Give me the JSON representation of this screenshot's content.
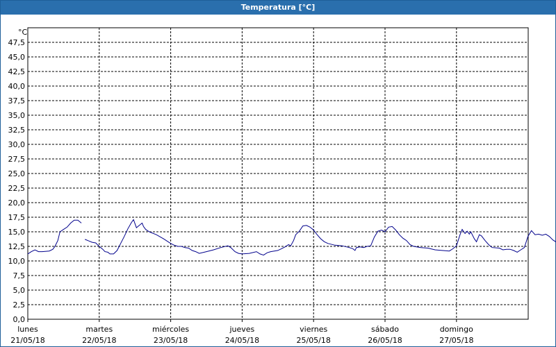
{
  "window": {
    "title": "Temperatura [°C]"
  },
  "chart_data": {
    "type": "line",
    "title": "Temperatura [°C]",
    "unit_label": "°C",
    "ylim": [
      0,
      50
    ],
    "y_ticks": [
      "0,0",
      "2,5",
      "5,0",
      "7,5",
      "10,0",
      "12,5",
      "15,0",
      "17,5",
      "20,0",
      "22,5",
      "25,0",
      "27,5",
      "30,0",
      "32,5",
      "35,0",
      "37,5",
      "40,0",
      "42,5",
      "45,0",
      "47,5"
    ],
    "y_tick_values": [
      0,
      2.5,
      5,
      7.5,
      10,
      12.5,
      15,
      17.5,
      20,
      22.5,
      25,
      27.5,
      30,
      32.5,
      35,
      37.5,
      40,
      42.5,
      45,
      47.5
    ],
    "xlim_days": [
      0,
      7.1
    ],
    "x_ticks": [
      {
        "day": "lunes",
        "date": "21/05/18"
      },
      {
        "day": "martes",
        "date": "22/05/18"
      },
      {
        "day": "miércoles",
        "date": "23/05/18"
      },
      {
        "day": "jueves",
        "date": "24/05/18"
      },
      {
        "day": "viernes",
        "date": "25/05/18"
      },
      {
        "day": "sábado",
        "date": "26/05/18"
      },
      {
        "day": "domingo",
        "date": "27/05/18"
      }
    ],
    "grid": true,
    "line_color": "#00008b",
    "series": [
      {
        "segments": [
          [
            [
              0,
              11.2
            ],
            [
              0.05,
              11.6
            ],
            [
              0.1,
              11.9
            ],
            [
              0.15,
              11.6
            ],
            [
              0.2,
              11.6
            ],
            [
              0.3,
              11.7
            ],
            [
              0.35,
              12.0
            ],
            [
              0.38,
              12.5
            ],
            [
              0.42,
              13.5
            ],
            [
              0.45,
              15.0
            ],
            [
              0.5,
              15.4
            ],
            [
              0.55,
              15.8
            ],
            [
              0.6,
              16.5
            ],
            [
              0.65,
              17.0
            ],
            [
              0.7,
              17.0
            ],
            [
              0.72,
              16.8
            ],
            [
              0.75,
              16.5
            ]
          ],
          [
            [
              0.8,
              13.7
            ],
            [
              0.9,
              13.2
            ],
            [
              0.95,
              13.1
            ],
            [
              1.0,
              12.5
            ],
            [
              1.05,
              12.0
            ],
            [
              1.08,
              11.6
            ],
            [
              1.12,
              11.5
            ],
            [
              1.15,
              11.2
            ],
            [
              1.2,
              11.2
            ],
            [
              1.25,
              11.8
            ],
            [
              1.3,
              13.0
            ],
            [
              1.35,
              14.2
            ],
            [
              1.4,
              15.5
            ],
            [
              1.45,
              16.6
            ],
            [
              1.48,
              17.1
            ],
            [
              1.52,
              15.7
            ],
            [
              1.55,
              16.0
            ],
            [
              1.6,
              16.5
            ],
            [
              1.62,
              15.9
            ],
            [
              1.65,
              15.4
            ],
            [
              1.7,
              15.0
            ],
            [
              1.8,
              14.5
            ],
            [
              1.9,
              13.8
            ],
            [
              2.0,
              13.0
            ],
            [
              2.05,
              12.7
            ],
            [
              2.1,
              12.5
            ],
            [
              2.15,
              12.5
            ],
            [
              2.2,
              12.3
            ],
            [
              2.25,
              12.2
            ],
            [
              2.3,
              11.8
            ],
            [
              2.35,
              11.6
            ],
            [
              2.4,
              11.3
            ],
            [
              2.5,
              11.6
            ],
            [
              2.6,
              11.9
            ],
            [
              2.7,
              12.3
            ],
            [
              2.8,
              12.6
            ],
            [
              2.84,
              12.3
            ],
            [
              2.9,
              11.6
            ],
            [
              2.95,
              11.3
            ],
            [
              3.0,
              11.2
            ],
            [
              3.1,
              11.3
            ],
            [
              3.2,
              11.6
            ],
            [
              3.25,
              11.2
            ],
            [
              3.3,
              11.0
            ],
            [
              3.35,
              11.4
            ],
            [
              3.4,
              11.6
            ],
            [
              3.5,
              11.8
            ],
            [
              3.55,
              12.1
            ],
            [
              3.6,
              12.4
            ],
            [
              3.65,
              12.8
            ],
            [
              3.68,
              12.6
            ],
            [
              3.72,
              13.5
            ],
            [
              3.75,
              14.5
            ],
            [
              3.8,
              15.1
            ],
            [
              3.85,
              16.0
            ],
            [
              3.9,
              16.1
            ],
            [
              3.95,
              15.8
            ],
            [
              4.0,
              15.3
            ],
            [
              4.05,
              14.5
            ],
            [
              4.1,
              13.8
            ],
            [
              4.15,
              13.3
            ],
            [
              4.2,
              13.0
            ],
            [
              4.3,
              12.7
            ],
            [
              4.4,
              12.6
            ],
            [
              4.5,
              12.3
            ],
            [
              4.55,
              12.1
            ],
            [
              4.58,
              11.8
            ],
            [
              4.6,
              12.3
            ],
            [
              4.65,
              12.4
            ],
            [
              4.7,
              12.3
            ],
            [
              4.75,
              12.5
            ],
            [
              4.8,
              12.6
            ],
            [
              4.85,
              14.1
            ],
            [
              4.9,
              15.1
            ],
            [
              4.95,
              15.3
            ],
            [
              5.0,
              15.0
            ],
            [
              5.05,
              15.8
            ],
            [
              5.1,
              15.9
            ],
            [
              5.15,
              15.3
            ],
            [
              5.2,
              14.5
            ],
            [
              5.25,
              13.9
            ],
            [
              5.3,
              13.5
            ],
            [
              5.35,
              12.8
            ],
            [
              5.4,
              12.5
            ],
            [
              5.5,
              12.3
            ],
            [
              5.6,
              12.2
            ],
            [
              5.7,
              11.9
            ],
            [
              5.8,
              11.8
            ],
            [
              5.9,
              11.7
            ],
            [
              5.95,
              12.1
            ],
            [
              6.0,
              12.6
            ],
            [
              6.05,
              14.5
            ],
            [
              6.08,
              15.4
            ],
            [
              6.12,
              14.7
            ],
            [
              6.15,
              15.1
            ],
            [
              6.18,
              14.6
            ],
            [
              6.2,
              15.0
            ],
            [
              6.25,
              13.8
            ],
            [
              6.28,
              13.3
            ],
            [
              6.32,
              14.5
            ],
            [
              6.35,
              14.3
            ],
            [
              6.4,
              13.5
            ],
            [
              6.45,
              12.8
            ],
            [
              6.5,
              12.3
            ],
            [
              6.6,
              12.2
            ],
            [
              6.65,
              11.9
            ],
            [
              6.7,
              12.0
            ],
            [
              6.75,
              12.0
            ],
            [
              6.8,
              11.8
            ],
            [
              6.85,
              11.5
            ],
            [
              6.9,
              11.9
            ],
            [
              6.95,
              12.3
            ],
            [
              7.0,
              14.2
            ],
            [
              7.05,
              15.2
            ],
            [
              7.1,
              14.5
            ],
            [
              7.15,
              14.6
            ],
            [
              7.2,
              14.4
            ],
            [
              7.25,
              14.6
            ],
            [
              7.3,
              14.2
            ],
            [
              7.35,
              13.6
            ],
            [
              7.4,
              13.2
            ],
            [
              7.45,
              12.7
            ],
            [
              7.5,
              12.2
            ],
            [
              7.6,
              12.0
            ],
            [
              7.7,
              11.9
            ]
          ]
        ]
      }
    ]
  }
}
